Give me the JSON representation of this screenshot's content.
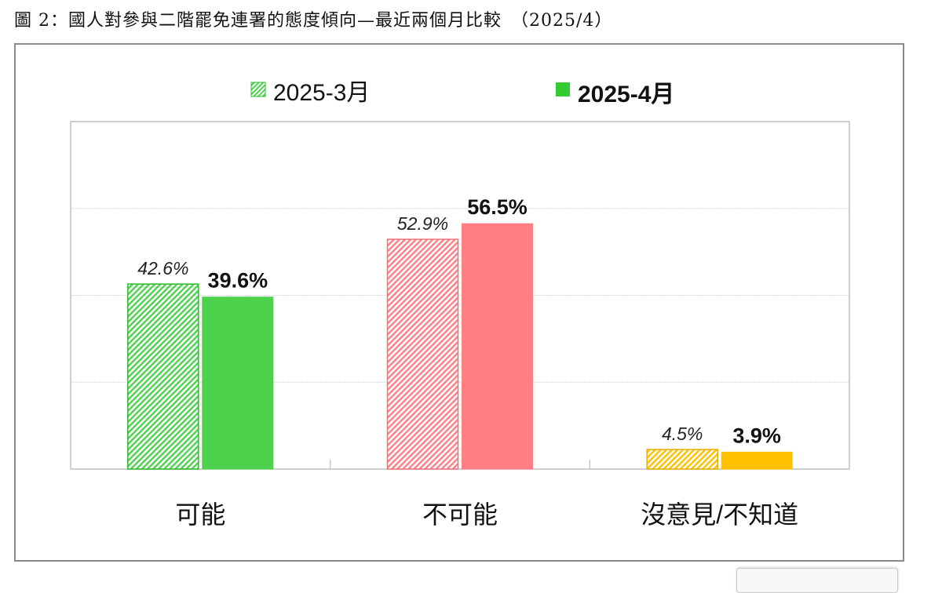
{
  "caption": "圖 2：國人對參與二階罷免連署的態度傾向—最近兩個月比較　（2025/4）",
  "colors": {
    "possible": "#4cd24c",
    "impossible": "#ff7f84",
    "no_opinion": "#ffc000",
    "possible_hatch_edge": "#2eb82e",
    "impossible_hatch_edge": "#f2707a",
    "no_opinion_hatch_edge": "#e6ac00",
    "legend_hatch": "#4cd24c",
    "legend_solid": "#33cc33"
  },
  "chart_data": {
    "type": "bar",
    "title": "",
    "xlabel": "",
    "ylabel": "",
    "ylim": [
      0,
      80
    ],
    "grid": true,
    "legend_placement": "top",
    "categories": [
      "可能",
      "不可能",
      "沒意見/不知道"
    ],
    "series": [
      {
        "name": "2025-3月",
        "values": [
          42.6,
          52.9,
          4.5
        ],
        "labels": [
          "42.6%",
          "52.9%",
          "4.5%"
        ],
        "style": "hatched"
      },
      {
        "name": "2025-4月",
        "values": [
          39.6,
          56.5,
          3.9
        ],
        "labels": [
          "39.6%",
          "56.5%",
          "3.9%"
        ],
        "style": "solid"
      }
    ]
  }
}
